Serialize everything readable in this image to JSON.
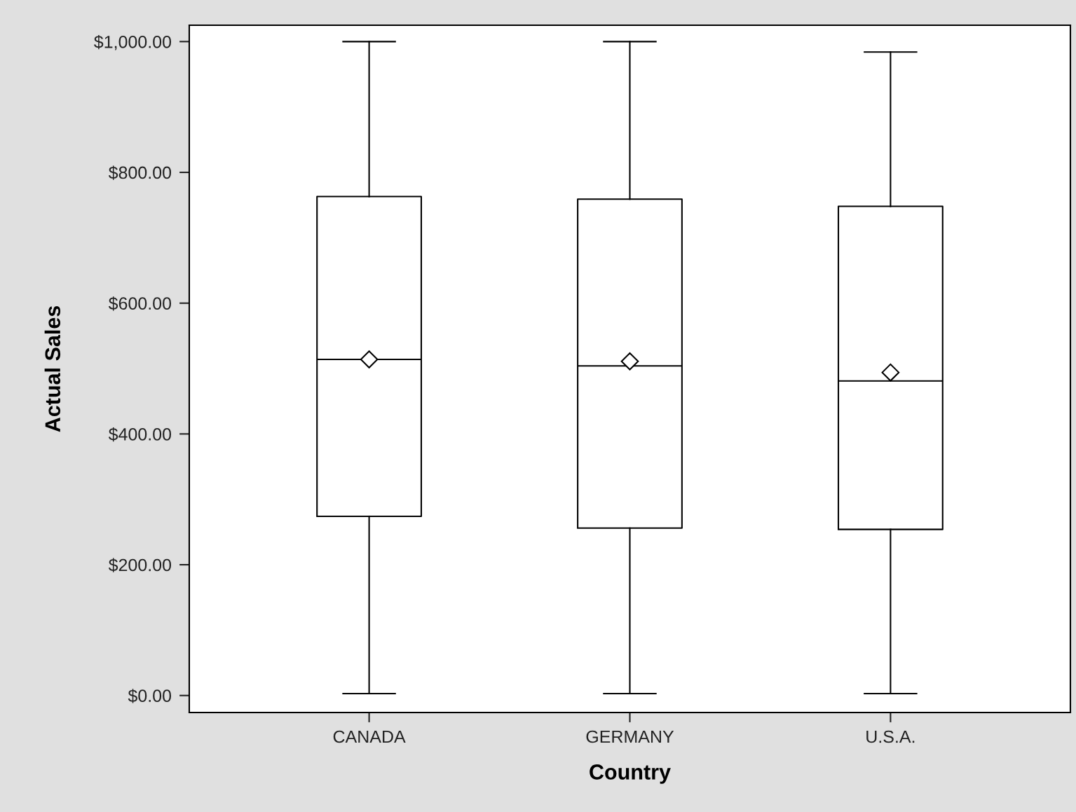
{
  "chart_data": {
    "type": "box",
    "xlabel": "Country",
    "ylabel": "Actual Sales",
    "categories": [
      "CANADA",
      "GERMANY",
      "U.S.A."
    ],
    "boxes": [
      {
        "low": 3,
        "q1": 274,
        "median": 514,
        "q3": 763,
        "high": 1000,
        "mean": 514
      },
      {
        "low": 3,
        "q1": 256,
        "median": 504,
        "q3": 759,
        "high": 1000,
        "mean": 511
      },
      {
        "low": 3,
        "q1": 254,
        "median": 481,
        "q3": 748,
        "high": 984,
        "mean": 494
      }
    ],
    "ylim": [
      -26,
      1025
    ],
    "yticks": [
      {
        "value": 0,
        "label": "$0.00"
      },
      {
        "value": 200,
        "label": "$200.00"
      },
      {
        "value": 400,
        "label": "$400.00"
      },
      {
        "value": 600,
        "label": "$600.00"
      },
      {
        "value": 800,
        "label": "$800.00"
      },
      {
        "value": 1000,
        "label": "$1,000.00"
      }
    ],
    "grid": false,
    "marker": "diamond"
  }
}
